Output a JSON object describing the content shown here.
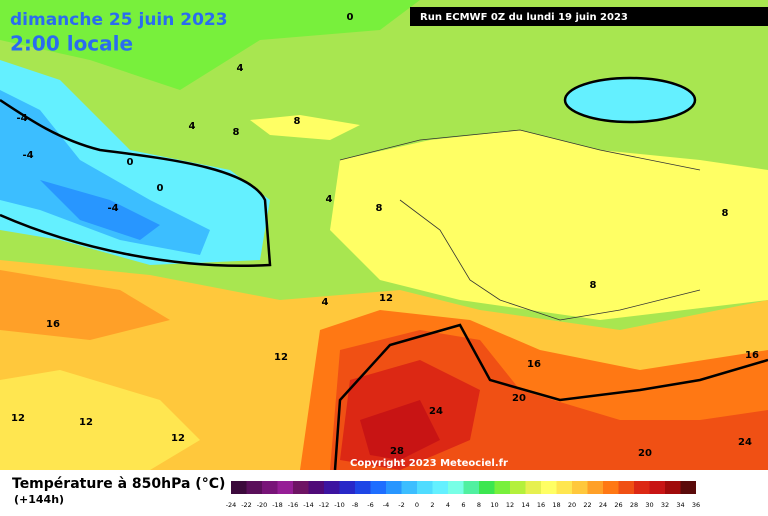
{
  "header": {
    "date": "dimanche 25 juin 2023",
    "time": "2:00 locale",
    "run": "Run ECMWF 0Z du lundi 19 juin 2023"
  },
  "map": {
    "contour_labels": [
      "0",
      "4",
      "4",
      "8",
      "8",
      "-4",
      "-4",
      "0",
      "0",
      "-4",
      "4",
      "8",
      "4",
      "12",
      "16",
      "12",
      "12",
      "12",
      "12",
      "16",
      "24",
      "20",
      "28",
      "20",
      "16",
      "24",
      "8",
      "8"
    ]
  },
  "copyright": "Copyright 2023 Meteociel.fr",
  "legend": {
    "title": "Température à 850hPa (°C)",
    "lead": "(+144h)",
    "ticks": [
      "-24",
      "-22",
      "-20",
      "-18",
      "-16",
      "-14",
      "-12",
      "-10",
      "-8",
      "-6",
      "-4",
      "-2",
      "0",
      "2",
      "4",
      "6",
      "8",
      "10",
      "12",
      "14",
      "16",
      "18",
      "20",
      "22",
      "24",
      "26",
      "28",
      "30",
      "32",
      "34",
      "36"
    ],
    "colors": [
      "#3c0a3c",
      "#5a0f5a",
      "#781478",
      "#961e96",
      "#6e1464",
      "#500a78",
      "#3c14a0",
      "#2828c8",
      "#1e46e6",
      "#1e6eff",
      "#2896ff",
      "#3cbeff",
      "#50dcff",
      "#64f0ff",
      "#78ffe6",
      "#50f0a0",
      "#3ce650",
      "#78f03c",
      "#b4f03c",
      "#e6f050",
      "#ffff64",
      "#ffe650",
      "#ffc83c",
      "#ffa028",
      "#ff7814",
      "#f05014",
      "#dc2814",
      "#c81414",
      "#a00a0a",
      "#5a0a0a"
    ]
  }
}
